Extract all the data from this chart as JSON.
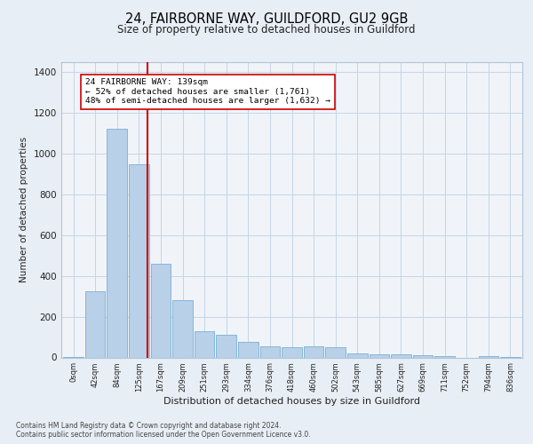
{
  "title1": "24, FAIRBORNE WAY, GUILDFORD, GU2 9GB",
  "title2": "Size of property relative to detached houses in Guildford",
  "xlabel": "Distribution of detached houses by size in Guildford",
  "ylabel": "Number of detached properties",
  "footnote1": "Contains HM Land Registry data © Crown copyright and database right 2024.",
  "footnote2": "Contains public sector information licensed under the Open Government Licence v3.0.",
  "categories": [
    "0sqm",
    "42sqm",
    "84sqm",
    "125sqm",
    "167sqm",
    "209sqm",
    "251sqm",
    "293sqm",
    "334sqm",
    "376sqm",
    "418sqm",
    "460sqm",
    "502sqm",
    "543sqm",
    "585sqm",
    "627sqm",
    "669sqm",
    "711sqm",
    "752sqm",
    "794sqm",
    "836sqm"
  ],
  "values": [
    2,
    325,
    1125,
    950,
    460,
    280,
    130,
    110,
    75,
    55,
    50,
    55,
    50,
    20,
    15,
    15,
    10,
    5,
    0,
    5,
    2
  ],
  "bar_color": "#b8d0e8",
  "bar_edge_color": "#7aafd4",
  "bar_edge_width": 0.6,
  "vline_x_index": 3.38,
  "vline_color": "#cc0000",
  "annotation_text": "24 FAIRBORNE WAY: 139sqm\n← 52% of detached houses are smaller (1,761)\n48% of semi-detached houses are larger (1,632) →",
  "annotation_box_edgecolor": "#cc0000",
  "annotation_box_facecolor": "#ffffff",
  "ylim": [
    0,
    1450
  ],
  "yticks": [
    0,
    200,
    400,
    600,
    800,
    1000,
    1200,
    1400
  ],
  "bg_color": "#e8eef5",
  "plot_bg_color": "#f0f4f9",
  "grid_color": "#c5d5e5",
  "title1_fontsize": 10.5,
  "title2_fontsize": 8.5,
  "xlabel_fontsize": 8.0,
  "ylabel_fontsize": 7.5,
  "xtick_fontsize": 6.0,
  "ytick_fontsize": 7.5,
  "footnote_fontsize": 5.5
}
